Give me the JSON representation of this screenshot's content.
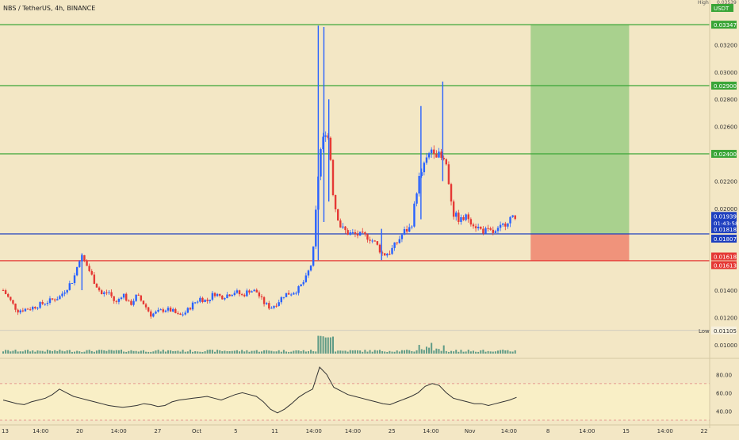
{
  "header": {
    "title": "NBS / TetherUS, 4h, BINANCE",
    "currency": "USDT",
    "high_tag": "High",
    "high_value": "0.03539"
  },
  "colors": {
    "background": "#f3e7c5",
    "up": "#2962ff",
    "down": "#e53935",
    "target_line": "#3aa537",
    "stop_line": "#e53935",
    "entry_line": "#1e3fbf",
    "profit_zone": "#a9d18e",
    "loss_zone": "#f0937b",
    "volume": "#1f7a6b",
    "rsi_line": "#333333",
    "rsi_band": "#f9efc6",
    "current_price_bg": "#1e3fbf"
  },
  "chart_data": [
    {
      "type": "candlestick",
      "title": "NBS / TetherUS, 4h, BINANCE",
      "y_axis": {
        "ticks": [
          "0.03200",
          "0.03000",
          "0.02800",
          "0.02600",
          "0.02200",
          "0.02000",
          "0.01400",
          "0.01200",
          "0.01000"
        ],
        "range": [
          0.0097,
          0.034
        ]
      },
      "x_axis": {
        "ticks": [
          "13",
          "14:00",
          "20",
          "14:00",
          "27",
          "Oct",
          "5",
          "11",
          "14:00",
          "14:00",
          "25",
          "14:00",
          "Nov",
          "14:00",
          "8",
          "14:00",
          "15",
          "14:00",
          "22"
        ]
      },
      "price_path": [
        [
          0,
          0.014
        ],
        [
          2,
          0.0125
        ],
        [
          4,
          0.0127
        ],
        [
          6,
          0.0131
        ],
        [
          8,
          0.0135
        ],
        [
          10,
          0.0148
        ],
        [
          11,
          0.0166
        ],
        [
          12,
          0.0157
        ],
        [
          13,
          0.0146
        ],
        [
          14,
          0.0137
        ],
        [
          15,
          0.0139
        ],
        [
          16,
          0.013
        ],
        [
          17,
          0.0138
        ],
        [
          18,
          0.0129
        ],
        [
          19,
          0.0136
        ],
        [
          20,
          0.013
        ],
        [
          21,
          0.0122
        ],
        [
          22,
          0.0124
        ],
        [
          23,
          0.0126
        ],
        [
          24,
          0.0125
        ],
        [
          25,
          0.0121
        ],
        [
          26,
          0.0124
        ],
        [
          27,
          0.013
        ],
        [
          28,
          0.0134
        ],
        [
          29,
          0.0132
        ],
        [
          30,
          0.0138
        ],
        [
          31,
          0.0135
        ],
        [
          32,
          0.0137
        ],
        [
          33,
          0.0139
        ],
        [
          34,
          0.0136
        ],
        [
          35,
          0.014
        ],
        [
          36,
          0.0139
        ],
        [
          37,
          0.0131
        ],
        [
          38,
          0.0127
        ],
        [
          39,
          0.0131
        ],
        [
          40,
          0.0137
        ],
        [
          41,
          0.0138
        ],
        [
          42,
          0.0141
        ],
        [
          43,
          0.0148
        ],
        [
          44,
          0.0162
        ],
        [
          45,
          0.024
        ],
        [
          46,
          0.026
        ],
        [
          46.5,
          0.024
        ],
        [
          47,
          0.0205
        ],
        [
          48,
          0.0186
        ],
        [
          49,
          0.0182
        ],
        [
          50,
          0.0181
        ],
        [
          51,
          0.018
        ],
        [
          52,
          0.0179
        ],
        [
          53,
          0.0174
        ],
        [
          54,
          0.0166
        ],
        [
          55,
          0.0168
        ],
        [
          56,
          0.0175
        ],
        [
          57,
          0.0183
        ],
        [
          58,
          0.0186
        ],
        [
          59,
          0.022
        ],
        [
          60,
          0.0233
        ],
        [
          61,
          0.0245
        ],
        [
          62,
          0.0238
        ],
        [
          63,
          0.0232
        ],
        [
          64,
          0.0196
        ],
        [
          65,
          0.0191
        ],
        [
          66,
          0.0194
        ],
        [
          67,
          0.0188
        ],
        [
          68,
          0.0184
        ],
        [
          69,
          0.0183
        ],
        [
          70,
          0.0182
        ],
        [
          71,
          0.0187
        ],
        [
          72,
          0.0193
        ],
        [
          73,
          0.0192
        ]
      ],
      "spikes": [
        {
          "x": 44.8,
          "high": 0.0334,
          "low": 0.0162
        },
        {
          "x": 45.6,
          "high": 0.0333,
          "low": 0.019
        },
        {
          "x": 46.3,
          "high": 0.028,
          "low": 0.0205
        },
        {
          "x": 59.4,
          "high": 0.0275,
          "low": 0.0192
        },
        {
          "x": 62.5,
          "high": 0.0293,
          "low": 0.022
        },
        {
          "x": 53.8,
          "high": 0.0185,
          "low": 0.0162
        },
        {
          "x": 11.2,
          "high": 0.0167,
          "low": 0.014
        }
      ],
      "horizontal_levels": [
        {
          "name": "take-profit-3",
          "price": 0.03347,
          "label": "0.03347",
          "kind": "target"
        },
        {
          "name": "take-profit-2",
          "price": 0.029,
          "label": "0.02900",
          "kind": "target"
        },
        {
          "name": "take-profit-1",
          "price": 0.024,
          "label": "0.02400",
          "kind": "target"
        },
        {
          "name": "entry",
          "price": 0.01813,
          "kind": "entry"
        },
        {
          "name": "stop",
          "price": 0.01616,
          "kind": "stop"
        }
      ],
      "price_labels": [
        {
          "name": "current-price",
          "value": "0.01939",
          "sub": "01:43:58",
          "price": 0.01939,
          "style": "current"
        },
        {
          "name": "entry-upper",
          "value": "0.01818",
          "price": 0.01818,
          "style": "entry"
        },
        {
          "name": "entry-lower",
          "value": "0.01807",
          "price": 0.01807,
          "style": "entry"
        },
        {
          "name": "stop-upper",
          "value": "0.01618",
          "price": 0.01618,
          "style": "stop"
        },
        {
          "name": "stop-lower",
          "value": "0.01613",
          "price": 0.01613,
          "style": "stop"
        }
      ],
      "low_marker": {
        "label": "Low",
        "value": "0.01105",
        "price": 0.01105
      },
      "position": {
        "entry": 0.01813,
        "target": 0.03347,
        "stop": 0.01616,
        "x_start": 75,
        "x_end": 89
      }
    },
    {
      "type": "line",
      "title": "",
      "y_axis": {
        "ticks": [
          "80.00",
          "60.00",
          "40.00"
        ],
        "range": [
          30,
          95
        ],
        "bands": [
          70,
          30
        ]
      },
      "values": [
        52,
        50,
        48,
        47,
        50,
        52,
        54,
        58,
        64,
        60,
        56,
        54,
        52,
        50,
        48,
        46,
        45,
        44,
        45,
        46,
        48,
        47,
        45,
        46,
        50,
        52,
        53,
        54,
        55,
        56,
        54,
        52,
        55,
        58,
        60,
        58,
        56,
        50,
        42,
        38,
        42,
        48,
        55,
        60,
        64,
        88,
        80,
        66,
        62,
        58,
        56,
        54,
        52,
        50,
        48,
        47,
        50,
        53,
        56,
        60,
        67,
        70,
        68,
        60,
        54,
        52,
        50,
        48,
        48,
        46,
        48,
        50,
        52,
        55
      ]
    }
  ]
}
